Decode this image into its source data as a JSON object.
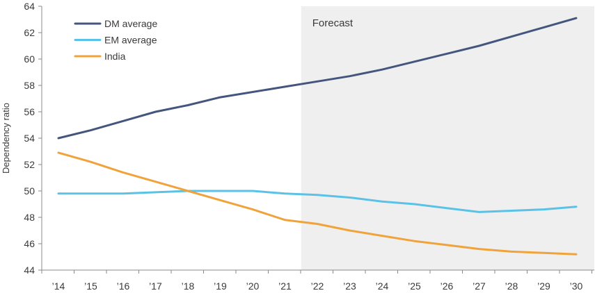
{
  "chart_data": {
    "type": "line",
    "title": "",
    "xlabel": "",
    "ylabel": "Dependency ratio",
    "ylim": [
      44,
      64
    ],
    "yticks": [
      44,
      46,
      48,
      50,
      52,
      54,
      56,
      58,
      60,
      62,
      64
    ],
    "categories": [
      "’14",
      "’15",
      "’16",
      "’17",
      "’18",
      "’19",
      "’20",
      "’21",
      "’22",
      "’23",
      "’24",
      "’25",
      "’26",
      "’27",
      "’28",
      "’29",
      "’30"
    ],
    "forecast": {
      "label": "Forecast",
      "from_index": 7.5,
      "to_index": 16.5,
      "color": "#efeff0"
    },
    "legend_position": "top-left",
    "series": [
      {
        "name": "DM average",
        "color": "#44567d",
        "values": [
          54.0,
          54.6,
          55.3,
          56.0,
          56.5,
          57.1,
          57.5,
          57.9,
          58.3,
          58.7,
          59.2,
          59.8,
          60.4,
          61.0,
          61.7,
          62.4,
          63.1
        ]
      },
      {
        "name": "EM average",
        "color": "#5bc2e7",
        "values": [
          49.8,
          49.8,
          49.8,
          49.9,
          50.0,
          50.0,
          50.0,
          49.8,
          49.7,
          49.5,
          49.2,
          49.0,
          48.7,
          48.4,
          48.5,
          48.6,
          48.8
        ]
      },
      {
        "name": "India",
        "color": "#f0a33a",
        "values": [
          52.9,
          52.2,
          51.4,
          50.7,
          50.0,
          49.3,
          48.6,
          47.8,
          47.5,
          47.0,
          46.6,
          46.2,
          45.9,
          45.6,
          45.4,
          45.3,
          45.2
        ]
      }
    ]
  }
}
